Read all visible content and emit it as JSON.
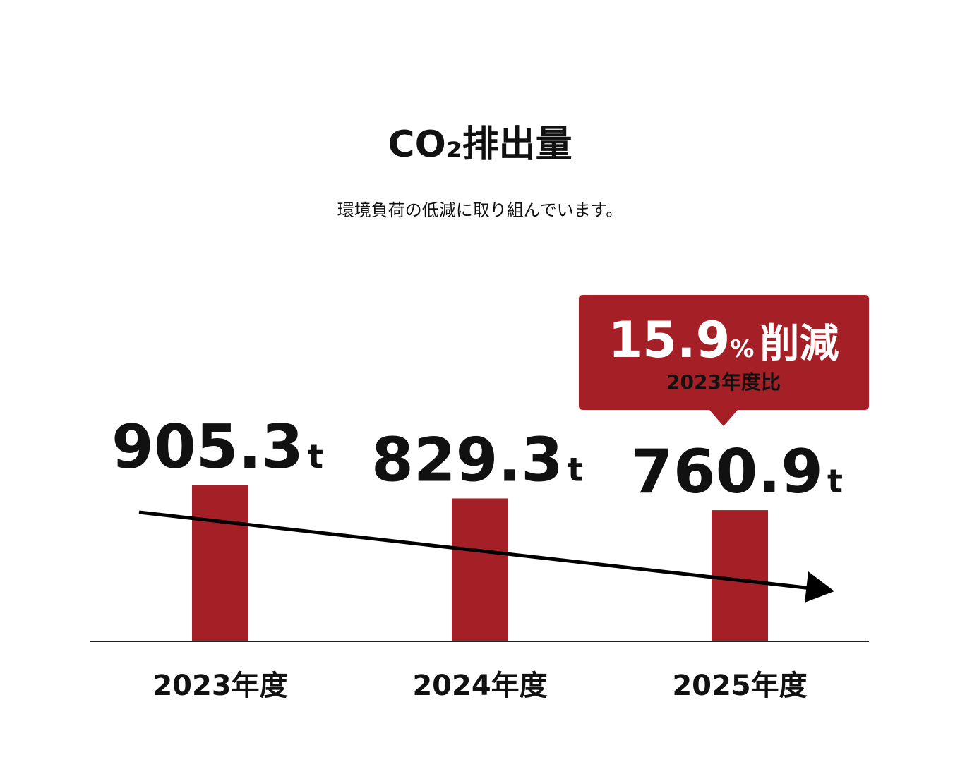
{
  "chart_data": {
    "type": "bar",
    "title": "CO₂排出量",
    "subtitle": "環境負荷の低減に取り組んでいます。",
    "categories": [
      "2023年度",
      "2024年度",
      "2025年度"
    ],
    "values": [
      905.3,
      829.3,
      760.9
    ],
    "unit": "t",
    "color": "#a51f26",
    "ylim": [
      0,
      1000
    ],
    "annotation": {
      "value": 15.9,
      "unit": "%",
      "text": "削減",
      "note": "2023年度比"
    }
  }
}
